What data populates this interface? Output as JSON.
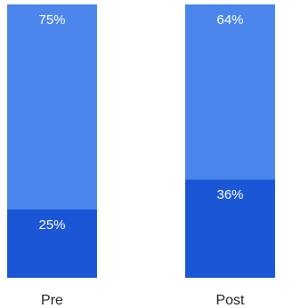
{
  "chart_data": {
    "type": "bar",
    "stacked": true,
    "categories": [
      "Pre",
      "Post"
    ],
    "series": [
      {
        "values": [
          25,
          36
        ],
        "color": "#1a56d6",
        "labels": [
          "25%",
          "36%"
        ]
      },
      {
        "values": [
          75,
          64
        ],
        "color": "#4a86ec",
        "labels": [
          "75%",
          "64%"
        ]
      }
    ],
    "ylim": [
      0,
      100
    ],
    "grid": false,
    "legend": "none",
    "title": "",
    "xlabel": "",
    "ylabel": ""
  }
}
